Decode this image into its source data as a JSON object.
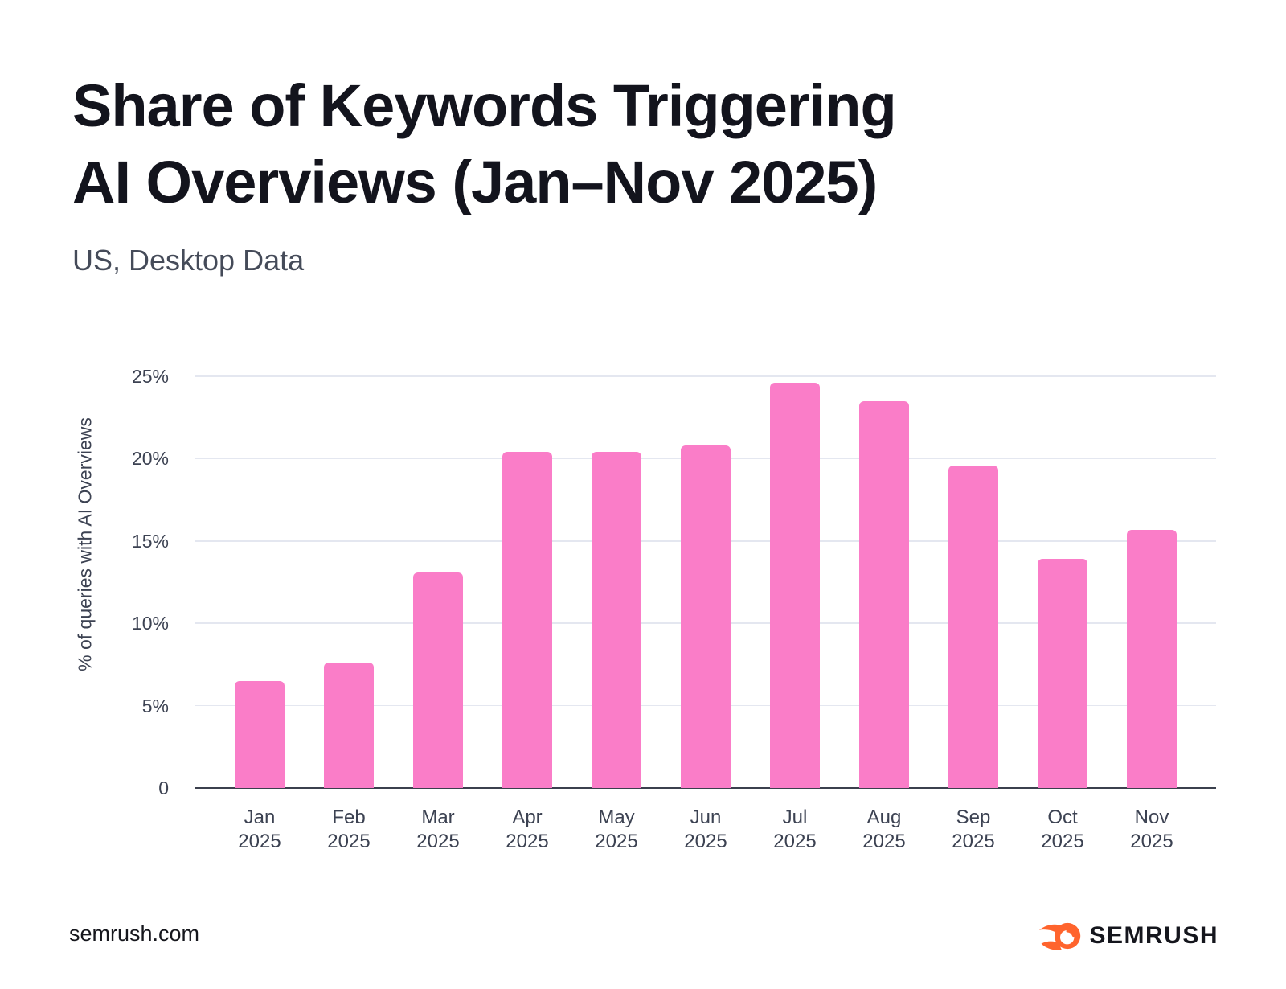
{
  "title": {
    "line1": "Share of Keywords Triggering",
    "line2": "AI Overviews (Jan–Nov 2025)"
  },
  "subtitle": "US, Desktop Data",
  "footer": {
    "site": "semrush.com",
    "brand": "SEMRUSH"
  },
  "colors": {
    "bar": "#fa7dc8",
    "brand_orange": "#ff642d",
    "axis_line": "#3b404d",
    "gridline": "#e4e7f0",
    "tick_text": "#3c4252",
    "title_text": "#13141d",
    "subtitle_text": "#454b59"
  },
  "chart_data": {
    "type": "bar",
    "title": "Share of Keywords Triggering AI Overviews (Jan–Nov 2025)",
    "subtitle": "US, Desktop Data",
    "months": [
      "Jan",
      "Feb",
      "Mar",
      "Apr",
      "May",
      "Jun",
      "Jul",
      "Aug",
      "Sep",
      "Oct",
      "Nov"
    ],
    "year": "2025",
    "categories": [
      "Jan 2025",
      "Feb 2025",
      "Mar 2025",
      "Apr 2025",
      "May 2025",
      "Jun 2025",
      "Jul 2025",
      "Aug 2025",
      "Sep 2025",
      "Oct 2025",
      "Nov 2025"
    ],
    "values": [
      6.5,
      7.6,
      13.1,
      20.4,
      20.4,
      20.8,
      24.6,
      23.5,
      19.6,
      13.9,
      15.7
    ],
    "xlabel": "",
    "ylabel": "% of queries with AI Overviews",
    "ylim": [
      0,
      25
    ],
    "yticks": [
      {
        "v": 0,
        "label": "0"
      },
      {
        "v": 5,
        "label": "5%"
      },
      {
        "v": 10,
        "label": "10%"
      },
      {
        "v": 15,
        "label": "15%"
      },
      {
        "v": 20,
        "label": "20%"
      },
      {
        "v": 25,
        "label": "25%"
      }
    ],
    "grid": "horizontal",
    "legend": "none"
  }
}
